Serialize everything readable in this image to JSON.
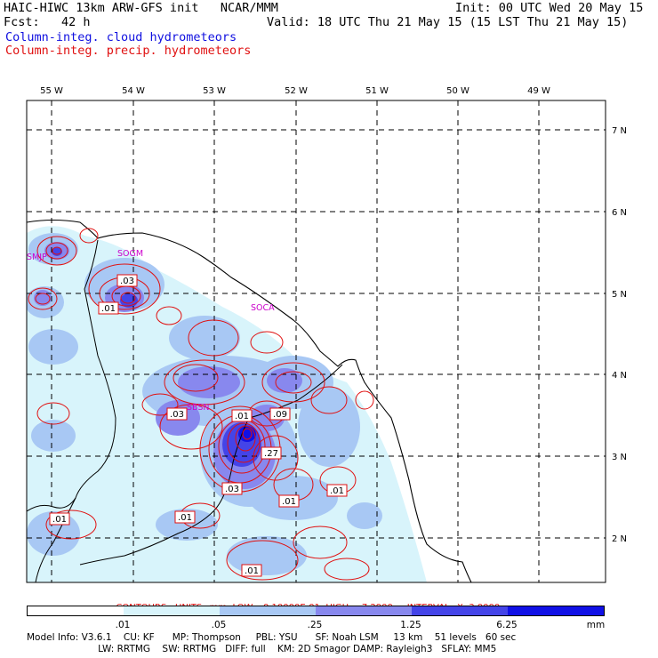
{
  "header": {
    "line1_left": "HAIC-HIWC 13km ARW-GFS init   NCAR/MMM",
    "line1_right": "Init: 00 UTC Wed 20 May 15",
    "line2_left": "Fcst:   42 h",
    "line2_right": "Valid: 18 UTC Thu 21 May 15 (15 LST Thu 21 May 15)",
    "field1": "Column-integ. cloud hydrometeors",
    "field2": "Column-integ. precip. hydrometeors"
  },
  "colors": {
    "cloud_field": "#1010e0",
    "precip_field": "#e01010"
  },
  "axes": {
    "lon_labels": [
      "55 W",
      "54 W",
      "53 W",
      "52 W",
      "51 W",
      "50 W",
      "49 W"
    ],
    "lat_labels": [
      "7 N",
      "6 N",
      "5 N",
      "4 N",
      "3 N",
      "2 N"
    ]
  },
  "stations": [
    "SMJP",
    "SOGM",
    "SOCA",
    "SBSN"
  ],
  "contour_labels": [
    ".03",
    ".01",
    ".03",
    ".01",
    ".09",
    ".27",
    ".03",
    ".01",
    ".01",
    ".01",
    ".01",
    ".01"
  ],
  "contour_info": {
    "contours": "CONTOURS:",
    "units": "UNITS=mm",
    "low": "LOW= 0.10000E-01",
    "high": "HIGH=  7.2900",
    "interval": "INTERVAL=X  3.0000"
  },
  "colorbar": {
    "labels": [
      ".01",
      ".05",
      ".25",
      "1.25",
      "6.25"
    ],
    "unit": "mm",
    "colors": [
      "#ffffff",
      "#d8f4fb",
      "#a8c8f4",
      "#8888ee",
      "#4444e8",
      "#1010e6"
    ]
  },
  "model_info": {
    "line1": "Model Info: V3.6.1    CU: KF      MP: Thompson     PBL: YSU      SF: Noah LSM     13 km    51 levels   60 sec",
    "line2": "                        LW: RRTMG    SW: RRTMG   DIFF: full    KM: 2D Smagor DAMP: Rayleigh3   SFLAY: MM5"
  }
}
